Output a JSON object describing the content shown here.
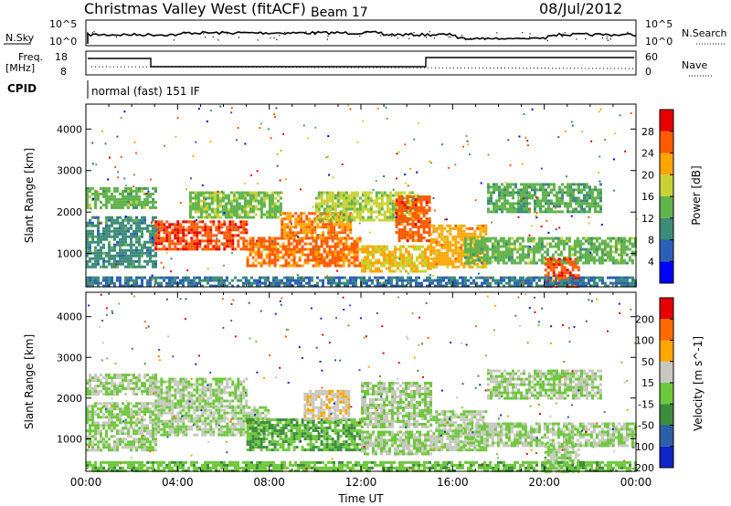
{
  "header": {
    "title": "Christmas Valley West (fitACF)",
    "beam": "Beam 17",
    "date": "08/Jul/2012"
  },
  "noise_panel": {
    "left_label": "N.Sky",
    "right_label": "N.Search",
    "tick_labels_left": [
      "10^5",
      "10^0"
    ],
    "tick_labels_right": [
      "10^5",
      "10^0"
    ]
  },
  "freq_panel": {
    "left_label_1": "Freq.",
    "left_label_2": "[MHz]",
    "right_label": "Nave",
    "left_ticks": [
      "18",
      "8"
    ],
    "right_ticks": [
      "60",
      "0"
    ]
  },
  "cpid": {
    "label": "CPID",
    "text": "normal (fast) 151 IF"
  },
  "colors": {
    "power_scale": [
      "#0000ff",
      "#2a5fb5",
      "#3d8c78",
      "#61b34c",
      "#c8d234",
      "#ffa500",
      "#ff5a00",
      "#e60000"
    ],
    "velocity_scale": [
      "#1024c8",
      "#2b5fa8",
      "#3b8c3c",
      "#6ec83c",
      "#c8c8c0",
      "#ffa500",
      "#ff6a00",
      "#e60000"
    ]
  },
  "chart_data": [
    {
      "type": "heatmap",
      "name": "power",
      "ylabel": "Slant Range [km]",
      "yticks": [
        "4000",
        "3000",
        "2000",
        "1000"
      ],
      "ylim": [
        200,
        4600
      ],
      "colorbar": {
        "label": "Power [dB]",
        "ticks": [
          "28",
          "24",
          "20",
          "16",
          "12",
          "8",
          "4"
        ],
        "range": [
          0,
          32
        ]
      },
      "bands": [
        {
          "t0": 0.0,
          "t1": 3.0,
          "r0": 2100,
          "r1": 2600,
          "v": 14
        },
        {
          "t0": 0.0,
          "t1": 3.0,
          "r0": 700,
          "r1": 1900,
          "v": 10
        },
        {
          "t0": 3.0,
          "t1": 7.0,
          "r0": 1100,
          "r1": 1800,
          "v": 27
        },
        {
          "t0": 4.5,
          "t1": 8.5,
          "r0": 1900,
          "r1": 2500,
          "v": 15
        },
        {
          "t0": 7.0,
          "t1": 12.0,
          "r0": 700,
          "r1": 1400,
          "v": 25
        },
        {
          "t0": 8.5,
          "t1": 11.5,
          "r0": 1400,
          "r1": 2000,
          "v": 24
        },
        {
          "t0": 10.0,
          "t1": 14.5,
          "r0": 1800,
          "r1": 2500,
          "v": 17
        },
        {
          "t0": 13.5,
          "t1": 15.0,
          "r0": 1300,
          "r1": 2400,
          "v": 26
        },
        {
          "t0": 12.0,
          "t1": 15.0,
          "r0": 600,
          "r1": 1200,
          "v": 20
        },
        {
          "t0": 15.0,
          "t1": 17.5,
          "r0": 700,
          "r1": 1700,
          "v": 22
        },
        {
          "t0": 16.5,
          "t1": 24.0,
          "r0": 800,
          "r1": 1400,
          "v": 14
        },
        {
          "t0": 17.5,
          "t1": 22.5,
          "r0": 2000,
          "r1": 2700,
          "v": 13
        },
        {
          "t0": 20.0,
          "t1": 21.5,
          "r0": 200,
          "r1": 900,
          "v": 27
        },
        {
          "t0": 0.0,
          "t1": 24.0,
          "r0": 200,
          "r1": 450,
          "v": 8
        }
      ]
    },
    {
      "type": "heatmap",
      "name": "velocity",
      "ylabel": "Slant Range [km]",
      "xlabel": "Time UT",
      "xticks": [
        "00:00",
        "04:00",
        "08:00",
        "12:00",
        "16:00",
        "20:00",
        "00:00"
      ],
      "yticks": [
        "4000",
        "3000",
        "2000",
        "1000"
      ],
      "ylim": [
        200,
        4600
      ],
      "colorbar": {
        "label": "Velocity [m s^-1]",
        "ticks": [
          "200",
          "100",
          "50",
          "15",
          "-15",
          "-50",
          "-100",
          "-200"
        ],
        "range": [
          -250,
          250
        ]
      },
      "bands": [
        {
          "t0": 0.0,
          "t1": 3.0,
          "r0": 2100,
          "r1": 2600,
          "v": 0
        },
        {
          "t0": 0.0,
          "t1": 3.0,
          "r0": 700,
          "r1": 1900,
          "v": -5
        },
        {
          "t0": 3.0,
          "t1": 7.0,
          "r0": 1800,
          "r1": 2500,
          "v": 0
        },
        {
          "t0": 3.0,
          "t1": 8.0,
          "r0": 1100,
          "r1": 1800,
          "v": 0
        },
        {
          "t0": 7.0,
          "t1": 12.0,
          "r0": 700,
          "r1": 1500,
          "v": -55
        },
        {
          "t0": 9.5,
          "t1": 11.5,
          "r0": 1500,
          "r1": 2200,
          "v": 45
        },
        {
          "t0": 12.0,
          "t1": 15.0,
          "r0": 1300,
          "r1": 2400,
          "v": 2
        },
        {
          "t0": 12.0,
          "t1": 15.0,
          "r0": 600,
          "r1": 1200,
          "v": -5
        },
        {
          "t0": 15.0,
          "t1": 17.5,
          "r0": 700,
          "r1": 1700,
          "v": 0
        },
        {
          "t0": 16.5,
          "t1": 24.0,
          "r0": 800,
          "r1": 1400,
          "v": 0
        },
        {
          "t0": 17.5,
          "t1": 22.5,
          "r0": 2000,
          "r1": 2700,
          "v": 0
        },
        {
          "t0": 20.0,
          "t1": 21.5,
          "r0": 200,
          "r1": 900,
          "v": 0
        },
        {
          "t0": 0.0,
          "t1": 24.0,
          "r0": 200,
          "r1": 450,
          "v": -40
        }
      ]
    }
  ]
}
